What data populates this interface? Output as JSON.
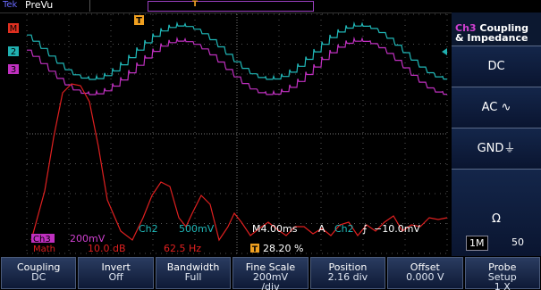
{
  "header": {
    "brand": "Tek",
    "mode": "PreVu"
  },
  "markers": {
    "trigger": "T",
    "math": "M",
    "ch2": "2",
    "ch3": "3"
  },
  "side_menu": {
    "channel": "Ch3",
    "title_lines": [
      "Coupling",
      "& Impedance"
    ],
    "options": [
      "DC",
      "AC ∿",
      "GND⏚"
    ],
    "impedance": {
      "symbol": "Ω",
      "options": [
        "1M",
        "50"
      ]
    }
  },
  "status": {
    "ch3": {
      "label": "Ch3",
      "scale": "200mV"
    },
    "math": {
      "label": "Math",
      "scale": "10.0 dB",
      "frequency": "62.5 Hz"
    },
    "ch2": {
      "label": "Ch2",
      "scale": "500mV"
    },
    "timebase": "M4.00ms",
    "trigger_mode": "A",
    "trigger_source": "Ch2",
    "trigger_slope": "⨍",
    "trigger_level": "−10.0mV",
    "trigger_position": {
      "icon": "T",
      "value": "28.20 %"
    }
  },
  "buttons": [
    {
      "lines": [
        "Coupling",
        "DC"
      ]
    },
    {
      "lines": [
        "Invert",
        "Off"
      ]
    },
    {
      "lines": [
        "Bandwidth",
        "Full"
      ]
    },
    {
      "lines": [
        "Fine Scale",
        "200mV",
        "/div"
      ]
    },
    {
      "lines": [
        "Position",
        "2.16 div"
      ]
    },
    {
      "lines": [
        "Offset",
        "0.000 V"
      ]
    },
    {
      "lines": [
        "Probe",
        "Setup",
        "1 X"
      ]
    }
  ]
}
